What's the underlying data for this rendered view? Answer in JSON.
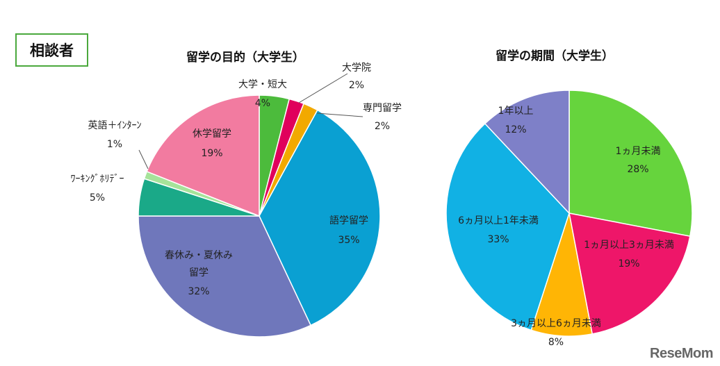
{
  "badge": "相談者",
  "brand": "ReseMom",
  "chart_data": [
    {
      "type": "pie",
      "title": "留学の目的（大学生）",
      "slices": [
        {
          "label": "大学・短大",
          "value": 4,
          "display": "4%",
          "color": "#4cbb3c"
        },
        {
          "label": "大学院",
          "value": 2,
          "display": "2%",
          "color": "#e0005c"
        },
        {
          "label": "専門留学",
          "value": 2,
          "display": "2%",
          "color": "#f2a900"
        },
        {
          "label": "語学留学",
          "value": 35,
          "display": "35%",
          "color": "#0aa0d2"
        },
        {
          "label": "春休み・夏休み留学",
          "label_lines": [
            "春休み・夏休み",
            "留学"
          ],
          "value": 32,
          "display": "32%",
          "color": "#6f77bb"
        },
        {
          "label": "ワーキングホリデー",
          "label_lines": [
            "ﾜｰｷﾝｸﾞﾎﾘﾃﾞｰ"
          ],
          "value": 5,
          "display": "5%",
          "color": "#1aa988"
        },
        {
          "label": "英語＋インターン",
          "label_lines": [
            "英語＋ｲﾝﾀｰﾝ"
          ],
          "value": 1,
          "display": "1%",
          "color": "#a6e39a"
        },
        {
          "label": "休学留学",
          "value": 19,
          "display": "19%",
          "color": "#f27ba0"
        }
      ]
    },
    {
      "type": "pie",
      "title": "留学の期間（大学生）",
      "slices": [
        {
          "label": "1ヵ月未満",
          "label_lines": [
            "1ヵ月未満"
          ],
          "value": 28,
          "display": "28%",
          "color": "#66d43d"
        },
        {
          "label": "1ヵ月以上3ヵ月未満",
          "label_lines": [
            "1ヵ月以上3ヵ月未満"
          ],
          "value": 19,
          "display": "19%",
          "color": "#ee1669"
        },
        {
          "label": "3ヵ月以上6ヵ月未満",
          "label_lines": [
            "3ヵ月以上6ヵ月未満"
          ],
          "value": 8,
          "display": "8%",
          "color": "#ffb505"
        },
        {
          "label": "6ヵ月以上1年未満",
          "label_lines": [
            "6ヵ月以上1年未満"
          ],
          "value": 33,
          "display": "33%",
          "color": "#11b1e4"
        },
        {
          "label": "1年以上",
          "value": 12,
          "display": "12%",
          "color": "#7e80c8"
        }
      ]
    }
  ]
}
